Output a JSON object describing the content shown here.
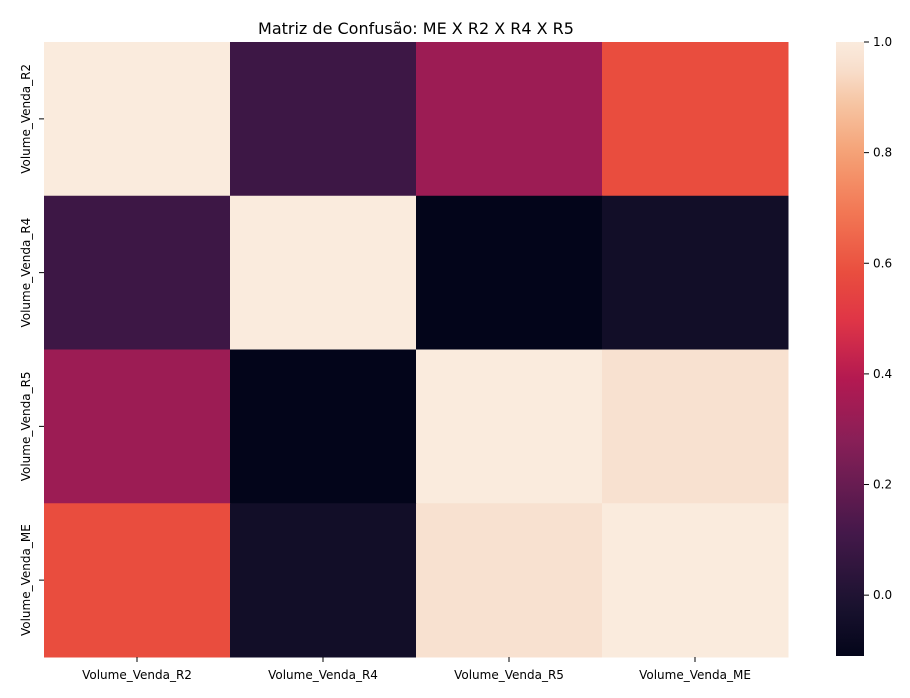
{
  "chart_data": {
    "type": "heatmap",
    "title": "Matriz de Confusão: ME X R2 X R4 X R5",
    "xlabel": "",
    "ylabel": "",
    "x_categories": [
      "Volume_Venda_R2",
      "Volume_Venda_R4",
      "Volume_Venda_R5",
      "Volume_Venda_ME"
    ],
    "y_categories": [
      "Volume_Venda_R2",
      "Volume_Venda_R4",
      "Volume_Venda_R5",
      "Volume_Venda_ME"
    ],
    "values": [
      [
        1.0,
        0.09,
        0.33,
        0.58
      ],
      [
        0.09,
        1.0,
        -0.11,
        -0.05
      ],
      [
        0.33,
        -0.11,
        1.0,
        0.96
      ],
      [
        0.58,
        -0.05,
        0.96,
        1.0
      ]
    ],
    "colorbar": {
      "range": [
        -0.11,
        1.0
      ],
      "ticks": [
        "0.0",
        "0.2",
        "0.4",
        "0.6",
        "0.8",
        "1.0"
      ],
      "colormap": "rocket"
    },
    "grid": false,
    "legend": "colorbar-right"
  }
}
